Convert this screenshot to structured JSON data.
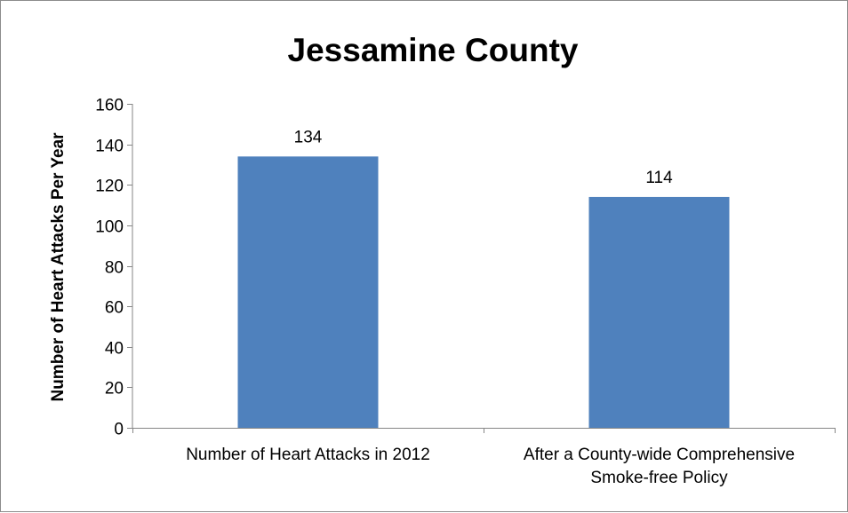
{
  "chart_data": {
    "type": "bar",
    "title": "Jessamine County",
    "xlabel": "",
    "ylabel": "Number of Heart Attacks Per Year",
    "categories": [
      [
        "Number of Heart Attacks in 2012"
      ],
      [
        "After a County-wide Comprehensive",
        "Smoke-free Policy"
      ]
    ],
    "values": [
      134,
      114
    ],
    "data_labels": [
      "134",
      "114"
    ],
    "ylim": [
      0,
      160
    ],
    "yticks": [
      0,
      20,
      40,
      60,
      80,
      100,
      120,
      140,
      160
    ],
    "grid": false,
    "legend": "none",
    "colors": {
      "bar": "#4f81bd",
      "axis": "#868686",
      "frame": "#8c8c8c"
    }
  }
}
